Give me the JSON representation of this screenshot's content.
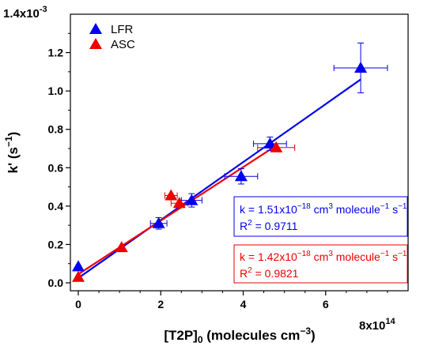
{
  "chart_data": {
    "type": "scatter",
    "xlabel": "[T2P]",
    "xlabel_sub": "0",
    "xlabel_suffix": " (molecules cm",
    "xlabel_sup": "−3",
    "xlabel_close": ")",
    "ylabel": "k' (s",
    "ylabel_sup": "−1",
    "ylabel_close": ")",
    "x_exponent_label": "8x10",
    "x_exponent_sup": "14",
    "y_exponent_label": "1.4x10",
    "y_exponent_sup": "-3",
    "xlim": [
      0,
      8
    ],
    "ylim": [
      0,
      1.4
    ],
    "x_ticks": [
      0,
      2,
      4,
      6
    ],
    "x_tick_labels": [
      "0",
      "2",
      "4",
      "6"
    ],
    "y_ticks": [
      0,
      0.2,
      0.4,
      0.6,
      0.8,
      1.0,
      1.2
    ],
    "y_tick_labels": [
      "0.0",
      "0.2",
      "0.4",
      "0.6",
      "0.8",
      "1.0",
      "1.2"
    ],
    "legend_position": "top-left",
    "grid": false,
    "series": [
      {
        "name": "LFR",
        "color": "#0000ee",
        "marker": "triangle-up",
        "points": [
          {
            "x": 0.0,
            "y": 0.085,
            "xerr": 0.0,
            "yerr": 0.0
          },
          {
            "x": 1.95,
            "y": 0.31,
            "xerr": 0.2,
            "yerr": 0.03
          },
          {
            "x": 2.75,
            "y": 0.43,
            "xerr": 0.25,
            "yerr": 0.035
          },
          {
            "x": 3.95,
            "y": 0.555,
            "xerr": 0.4,
            "yerr": 0.04
          },
          {
            "x": 4.65,
            "y": 0.725,
            "xerr": 0.4,
            "yerr": 0.035
          },
          {
            "x": 6.85,
            "y": 1.12,
            "xerr": 0.65,
            "yerr": 0.13
          }
        ],
        "fit": {
          "x_range": [
            0,
            6.85
          ],
          "y_start": 0.025,
          "y_end": 1.06
        },
        "fit_label_k_prefix": "k = 1.51x10",
        "fit_label_k_exp": "−18",
        "fit_label_k_unit1": " cm",
        "fit_label_k_unit1_sup": "3",
        "fit_label_k_unit2": " molecule",
        "fit_label_k_unit2_sup": "−1",
        "fit_label_k_unit3": " s",
        "fit_label_k_unit3_sup": "−1",
        "fit_label_r2_prefix": "R",
        "fit_label_r2_sup": "2",
        "fit_label_r2_value": " = 0.9711"
      },
      {
        "name": "ASC",
        "color": "#ee0000",
        "marker": "triangle-up",
        "points": [
          {
            "x": 0.0,
            "y": 0.03,
            "xerr": 0.0,
            "yerr": 0.0
          },
          {
            "x": 1.05,
            "y": 0.185,
            "xerr": 0.0,
            "yerr": 0.0
          },
          {
            "x": 2.25,
            "y": 0.455,
            "xerr": 0.15,
            "yerr": 0.0
          },
          {
            "x": 2.45,
            "y": 0.415,
            "xerr": 0.2,
            "yerr": 0.0
          },
          {
            "x": 4.8,
            "y": 0.705,
            "xerr": 0.45,
            "yerr": 0.0
          }
        ],
        "fit": {
          "x_range": [
            0,
            4.8
          ],
          "y_start": 0.045,
          "y_end": 0.715
        },
        "fit_label_k_prefix": "k = 1.42x10",
        "fit_label_k_exp": "−18",
        "fit_label_k_unit1": " cm",
        "fit_label_k_unit1_sup": "3",
        "fit_label_k_unit2": " molecule",
        "fit_label_k_unit2_sup": "−1",
        "fit_label_k_unit3": " s",
        "fit_label_k_unit3_sup": "−1",
        "fit_label_r2_prefix": "R",
        "fit_label_r2_sup": "2",
        "fit_label_r2_value": " = 0.9821"
      }
    ]
  }
}
